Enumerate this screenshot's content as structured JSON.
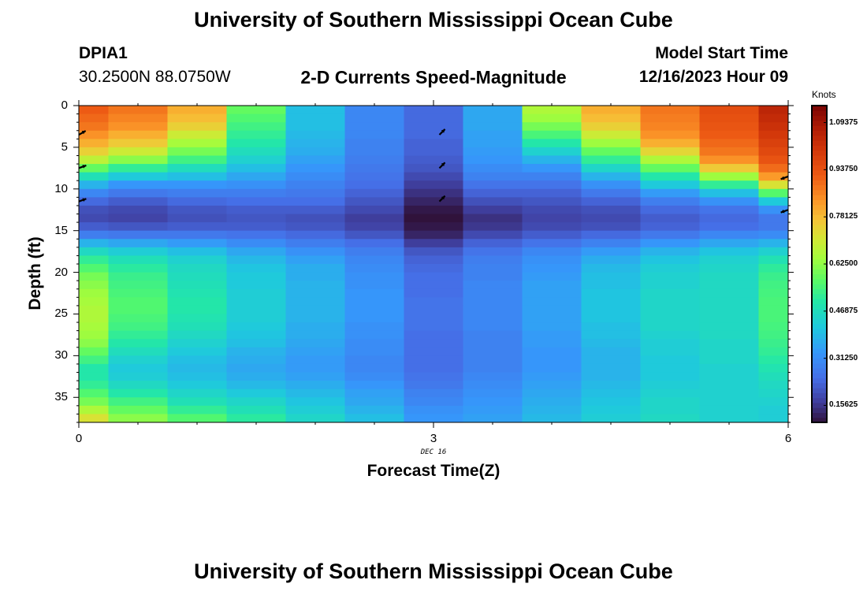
{
  "header": {
    "title": "University of Southern Mississippi Ocean Cube",
    "station": "DPIA1",
    "coords": "30.2500N  88.0750W",
    "subtitle": "2-D Currents Speed-Magnitude",
    "model_label": "Model Start Time",
    "model_time": "12/16/2023 Hour 09",
    "bottom_title": "University of Southern Mississippi Ocean Cube"
  },
  "chart_data": {
    "type": "heatmap",
    "title": "2-D Currents Speed-Magnitude",
    "xlabel": "Forecast Time(Z)",
    "ylabel": "Depth (ft)",
    "x_sublabel": "DEC 16",
    "xlim": [
      0,
      6
    ],
    "ylim": [
      38,
      0
    ],
    "x_ticks": [
      "0",
      "3",
      "6"
    ],
    "y_ticks": [
      "0",
      "5",
      "10",
      "15",
      "20",
      "25",
      "30",
      "35"
    ],
    "colorbar": {
      "unit": "Knots",
      "min": 0.1,
      "max": 1.15,
      "ticks": [
        "0.15625",
        "0.31250",
        "0.46875",
        "0.62500",
        "0.78125",
        "0.93750",
        "1.09375"
      ]
    },
    "time_columns": [
      0,
      0.25,
      0.75,
      1.25,
      1.75,
      2.25,
      2.75,
      3.25,
      3.75,
      4.25,
      4.75,
      5.25,
      5.75,
      6
    ],
    "depth_ft": [
      0,
      1,
      2,
      3,
      4,
      5,
      6,
      7,
      8,
      9,
      10,
      11,
      12,
      13,
      14,
      15,
      16,
      17,
      18,
      19,
      20,
      21,
      22,
      23,
      24,
      25,
      26,
      27,
      28,
      29,
      30,
      31,
      32,
      33,
      34,
      35,
      36,
      37
    ],
    "profiles": [
      {
        "time": 0,
        "speed": [
          0.92,
          0.9,
          0.88,
          0.84,
          0.8,
          0.75,
          0.68,
          0.58,
          0.48,
          0.38,
          0.3,
          0.24,
          0.2,
          0.19,
          0.22,
          0.28,
          0.38,
          0.46,
          0.52,
          0.56,
          0.6,
          0.62,
          0.64,
          0.65,
          0.66,
          0.66,
          0.65,
          0.64,
          0.62,
          0.58,
          0.54,
          0.5,
          0.5,
          0.52,
          0.56,
          0.6,
          0.66,
          0.72
        ]
      },
      {
        "time": 0.25,
        "speed": [
          0.88,
          0.86,
          0.84,
          0.8,
          0.76,
          0.7,
          0.62,
          0.52,
          0.42,
          0.33,
          0.27,
          0.22,
          0.19,
          0.18,
          0.21,
          0.27,
          0.36,
          0.43,
          0.48,
          0.51,
          0.53,
          0.54,
          0.55,
          0.56,
          0.56,
          0.55,
          0.54,
          0.52,
          0.5,
          0.47,
          0.44,
          0.42,
          0.43,
          0.46,
          0.5,
          0.54,
          0.58,
          0.62
        ]
      },
      {
        "time": 0.75,
        "speed": [
          0.8,
          0.78,
          0.75,
          0.7,
          0.65,
          0.6,
          0.54,
          0.47,
          0.4,
          0.33,
          0.28,
          0.24,
          0.21,
          0.2,
          0.22,
          0.27,
          0.34,
          0.4,
          0.44,
          0.46,
          0.47,
          0.48,
          0.49,
          0.5,
          0.5,
          0.49,
          0.48,
          0.46,
          0.44,
          0.42,
          0.4,
          0.39,
          0.4,
          0.42,
          0.45,
          0.48,
          0.52,
          0.56
        ]
      },
      {
        "time": 1.25,
        "speed": [
          0.58,
          0.56,
          0.54,
          0.52,
          0.5,
          0.47,
          0.44,
          0.4,
          0.36,
          0.32,
          0.28,
          0.25,
          0.22,
          0.21,
          0.22,
          0.26,
          0.31,
          0.36,
          0.39,
          0.41,
          0.42,
          0.42,
          0.43,
          0.43,
          0.43,
          0.43,
          0.42,
          0.41,
          0.4,
          0.38,
          0.37,
          0.36,
          0.37,
          0.39,
          0.42,
          0.45,
          0.48,
          0.51
        ]
      },
      {
        "time": 1.75,
        "speed": [
          0.4,
          0.4,
          0.4,
          0.39,
          0.38,
          0.37,
          0.35,
          0.33,
          0.31,
          0.29,
          0.27,
          0.25,
          0.22,
          0.2,
          0.21,
          0.24,
          0.28,
          0.32,
          0.35,
          0.37,
          0.37,
          0.38,
          0.38,
          0.38,
          0.38,
          0.38,
          0.37,
          0.37,
          0.36,
          0.35,
          0.34,
          0.34,
          0.35,
          0.37,
          0.39,
          0.41,
          0.43,
          0.45
        ]
      },
      {
        "time": 2.25,
        "speed": [
          0.3,
          0.3,
          0.3,
          0.3,
          0.29,
          0.29,
          0.28,
          0.27,
          0.26,
          0.25,
          0.23,
          0.21,
          0.19,
          0.17,
          0.18,
          0.21,
          0.25,
          0.28,
          0.3,
          0.31,
          0.32,
          0.32,
          0.33,
          0.33,
          0.33,
          0.33,
          0.32,
          0.32,
          0.31,
          0.31,
          0.3,
          0.3,
          0.31,
          0.33,
          0.35,
          0.36,
          0.38,
          0.4
        ]
      },
      {
        "time": 2.75,
        "speed": [
          0.24,
          0.24,
          0.24,
          0.24,
          0.23,
          0.23,
          0.22,
          0.21,
          0.19,
          0.17,
          0.15,
          0.13,
          0.11,
          0.1,
          0.11,
          0.13,
          0.17,
          0.21,
          0.23,
          0.24,
          0.25,
          0.25,
          0.25,
          0.26,
          0.26,
          0.26,
          0.26,
          0.25,
          0.25,
          0.25,
          0.25,
          0.25,
          0.26,
          0.27,
          0.29,
          0.3,
          0.32,
          0.33
        ]
      },
      {
        "time": 3.25,
        "speed": [
          0.36,
          0.36,
          0.36,
          0.35,
          0.35,
          0.34,
          0.33,
          0.31,
          0.29,
          0.26,
          0.23,
          0.2,
          0.17,
          0.15,
          0.16,
          0.19,
          0.23,
          0.26,
          0.28,
          0.29,
          0.29,
          0.3,
          0.3,
          0.3,
          0.3,
          0.3,
          0.3,
          0.29,
          0.29,
          0.29,
          0.29,
          0.29,
          0.3,
          0.31,
          0.32,
          0.33,
          0.34,
          0.35
        ]
      },
      {
        "time": 3.75,
        "speed": [
          0.66,
          0.64,
          0.6,
          0.55,
          0.5,
          0.44,
          0.38,
          0.33,
          0.29,
          0.26,
          0.23,
          0.21,
          0.19,
          0.18,
          0.19,
          0.22,
          0.26,
          0.3,
          0.32,
          0.33,
          0.34,
          0.35,
          0.35,
          0.35,
          0.35,
          0.35,
          0.35,
          0.34,
          0.34,
          0.33,
          0.33,
          0.33,
          0.34,
          0.35,
          0.36,
          0.37,
          0.38,
          0.39
        ]
      },
      {
        "time": 4.25,
        "speed": [
          0.8,
          0.78,
          0.75,
          0.7,
          0.64,
          0.58,
          0.52,
          0.45,
          0.38,
          0.32,
          0.27,
          0.23,
          0.2,
          0.19,
          0.2,
          0.24,
          0.29,
          0.34,
          0.37,
          0.39,
          0.4,
          0.4,
          0.41,
          0.41,
          0.41,
          0.41,
          0.4,
          0.4,
          0.39,
          0.38,
          0.38,
          0.38,
          0.38,
          0.39,
          0.4,
          0.41,
          0.42,
          0.43
        ]
      },
      {
        "time": 4.75,
        "speed": [
          0.88,
          0.87,
          0.86,
          0.84,
          0.8,
          0.74,
          0.66,
          0.58,
          0.5,
          0.42,
          0.34,
          0.28,
          0.24,
          0.22,
          0.23,
          0.27,
          0.33,
          0.38,
          0.41,
          0.43,
          0.44,
          0.44,
          0.45,
          0.45,
          0.45,
          0.45,
          0.45,
          0.44,
          0.43,
          0.43,
          0.42,
          0.42,
          0.42,
          0.43,
          0.44,
          0.45,
          0.45,
          0.46
        ]
      },
      {
        "time": 5.25,
        "speed": [
          0.95,
          0.94,
          0.93,
          0.92,
          0.9,
          0.88,
          0.84,
          0.76,
          0.64,
          0.52,
          0.4,
          0.32,
          0.26,
          0.24,
          0.25,
          0.3,
          0.36,
          0.41,
          0.44,
          0.45,
          0.46,
          0.46,
          0.46,
          0.46,
          0.46,
          0.46,
          0.46,
          0.46,
          0.45,
          0.45,
          0.45,
          0.44,
          0.44,
          0.44,
          0.44,
          0.44,
          0.44,
          0.44
        ]
      },
      {
        "time": 5.75,
        "speed": [
          1.02,
          1.01,
          1.0,
          0.98,
          0.96,
          0.94,
          0.91,
          0.86,
          0.78,
          0.64,
          0.48,
          0.36,
          0.29,
          0.26,
          0.27,
          0.31,
          0.38,
          0.43,
          0.47,
          0.49,
          0.5,
          0.51,
          0.51,
          0.52,
          0.52,
          0.52,
          0.51,
          0.51,
          0.5,
          0.49,
          0.48,
          0.47,
          0.46,
          0.45,
          0.44,
          0.43,
          0.42,
          0.42
        ]
      },
      {
        "time": 6,
        "speed": [
          1.08,
          1.06,
          1.04,
          1.02,
          1.0,
          0.98,
          0.96,
          0.93,
          0.88,
          0.8,
          0.65,
          0.48,
          0.35,
          0.28,
          0.27,
          0.31,
          0.38,
          0.45,
          0.5,
          0.54,
          0.56,
          0.57,
          0.58,
          0.58,
          0.58,
          0.58,
          0.58,
          0.57,
          0.56,
          0.55,
          0.53,
          0.51,
          0.49,
          0.47,
          0.46,
          0.45,
          0.44,
          0.44
        ]
      }
    ],
    "vectors": [
      {
        "time": 0,
        "depth": 3.5,
        "angle_deg": 30
      },
      {
        "time": 0,
        "depth": 7.5,
        "angle_deg": 20
      },
      {
        "time": 0,
        "depth": 11.5,
        "angle_deg": 20
      },
      {
        "time": 3.05,
        "depth": 3.5,
        "angle_deg": 45
      },
      {
        "time": 3.05,
        "depth": 7.5,
        "angle_deg": 45
      },
      {
        "time": 3.05,
        "depth": 11.5,
        "angle_deg": 45
      },
      {
        "time": 6,
        "depth": 8.5,
        "angle_deg": 200
      },
      {
        "time": 6,
        "depth": 12.5,
        "angle_deg": 200
      }
    ]
  }
}
